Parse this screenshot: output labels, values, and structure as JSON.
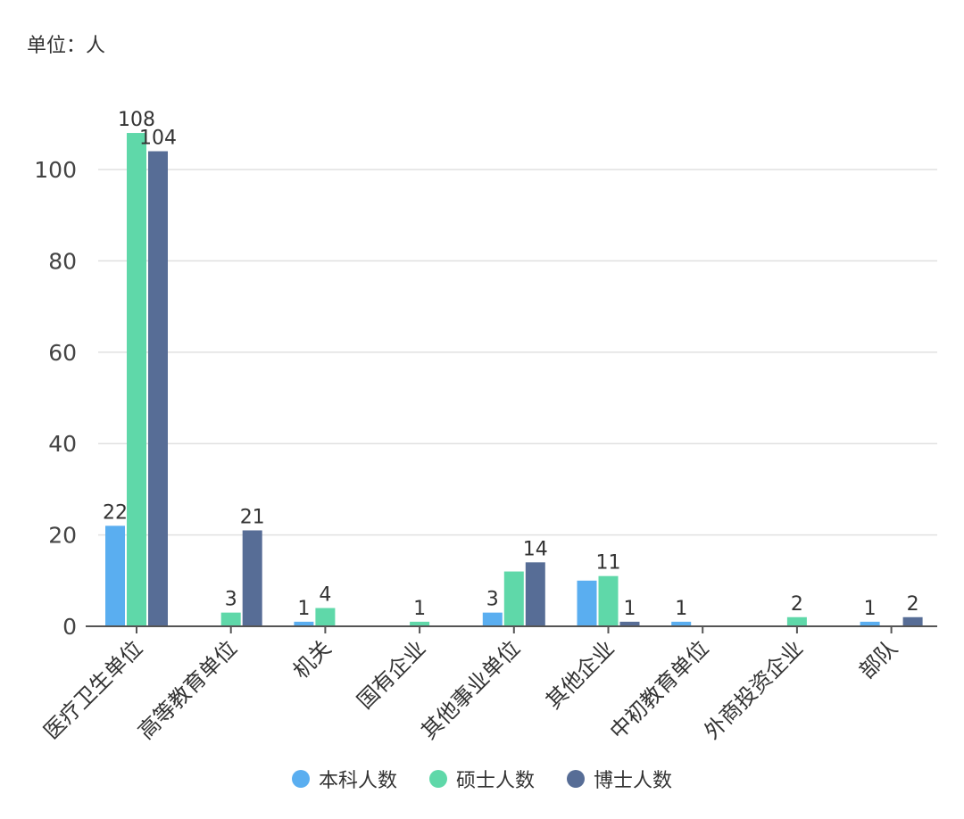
{
  "unit_label": "单位：人",
  "chart_data": {
    "type": "bar",
    "title": "",
    "xlabel": "",
    "ylabel": "",
    "ylim": [
      0,
      110
    ],
    "yticks": [
      0,
      20,
      40,
      60,
      80,
      100
    ],
    "grid": true,
    "legend_position": "bottom",
    "categories": [
      "医疗卫生单位",
      "高等教育单位",
      "机关",
      "国有企业",
      "其他事业单位",
      "其他企业",
      "中初教育单位",
      "外商投资企业",
      "部队"
    ],
    "series": [
      {
        "name": "本科人数",
        "color": "#5aaef0",
        "values": [
          22,
          0,
          1,
          0,
          3,
          10,
          1,
          0,
          1
        ],
        "labels": [
          "22",
          "",
          "1",
          "",
          "3",
          "",
          "1",
          "",
          "1"
        ]
      },
      {
        "name": "硕士人数",
        "color": "#5fd8a9",
        "values": [
          108,
          3,
          4,
          1,
          12,
          11,
          0,
          2,
          0
        ],
        "labels": [
          "108",
          "3",
          "4",
          "1",
          "",
          "11",
          "",
          "2",
          ""
        ]
      },
      {
        "name": "博士人数",
        "color": "#576d96",
        "values": [
          104,
          21,
          0,
          0,
          14,
          1,
          0,
          0,
          2
        ],
        "labels": [
          "104",
          "21",
          "",
          "",
          "14",
          "1",
          "",
          "",
          "2"
        ]
      }
    ]
  }
}
